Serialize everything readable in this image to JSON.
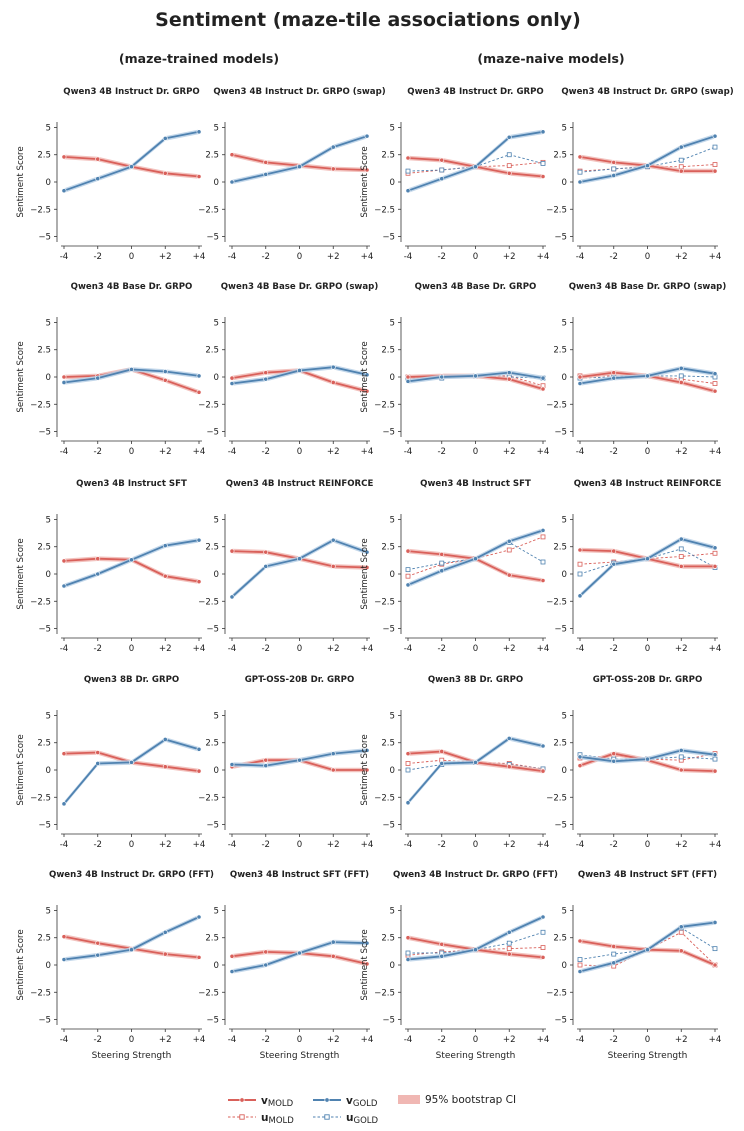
{
  "figure": {
    "title": "Sentiment (maze-tile associations only)",
    "left_header": "(maze-trained models)",
    "right_header": "(maze-naive models)",
    "xlabel": "Steering Strength",
    "ylabel": "Sentiment Score",
    "legend": {
      "v_mold_main": "v",
      "v_mold_sub": "MOLD",
      "u_mold_main": "u",
      "u_mold_sub": "MOLD",
      "v_gold_main": "v",
      "v_gold_sub": "GOLD",
      "u_gold_main": "u",
      "u_gold_sub": "GOLD",
      "ci": "95% bootstrap CI"
    },
    "colors": {
      "mold": "#d9605a",
      "gold": "#4f82b0",
      "ci_mold": "#f0b7b3",
      "ci_gold": "#b8d0e6"
    }
  },
  "chart_data": [
    {
      "type": "line",
      "title": "Qwen3 4B Instruct Dr. GRPO",
      "x": [
        "-4",
        "-2",
        "0",
        "+2",
        "+4"
      ],
      "ylim": [
        -5.5,
        5.5
      ],
      "yticks": [
        "5",
        "2.5",
        "0",
        "−2.5",
        "−5"
      ],
      "xlabel": "",
      "ylabel": "Sentiment Score",
      "series": [
        {
          "name": "v_MOLD",
          "values": [
            2.3,
            2.1,
            1.4,
            0.8,
            0.5
          ]
        },
        {
          "name": "v_GOLD",
          "values": [
            -0.8,
            0.3,
            1.4,
            4.0,
            4.6
          ]
        }
      ]
    },
    {
      "type": "line",
      "title": "Qwen3 4B Instruct Dr. GRPO (swap)",
      "x": [
        "-4",
        "-2",
        "0",
        "+2",
        "+4"
      ],
      "ylim": [
        -5.5,
        5.5
      ],
      "yticks": [
        "5",
        "2.5",
        "0",
        "−2.5",
        "−5"
      ],
      "xlabel": "",
      "ylabel": "",
      "series": [
        {
          "name": "v_MOLD",
          "values": [
            2.5,
            1.8,
            1.5,
            1.2,
            1.1
          ]
        },
        {
          "name": "v_GOLD",
          "values": [
            0.0,
            0.7,
            1.4,
            3.2,
            4.2
          ]
        }
      ]
    },
    {
      "type": "line",
      "title": "Qwen3 4B Instruct Dr. GRPO",
      "x": [
        "-4",
        "-2",
        "0",
        "+2",
        "+4"
      ],
      "ylim": [
        -5.5,
        5.5
      ],
      "yticks": [
        "5",
        "2.5",
        "0",
        "−2.5",
        "−5"
      ],
      "xlabel": "",
      "ylabel": "Sentiment Score",
      "series": [
        {
          "name": "v_MOLD",
          "values": [
            2.2,
            2.0,
            1.4,
            0.8,
            0.5
          ]
        },
        {
          "name": "u_MOLD",
          "values": [
            0.8,
            1.1,
            1.4,
            1.5,
            1.8
          ]
        },
        {
          "name": "v_GOLD",
          "values": [
            -0.8,
            0.3,
            1.4,
            4.1,
            4.6
          ]
        },
        {
          "name": "u_GOLD",
          "values": [
            1.0,
            1.1,
            1.4,
            2.5,
            1.7
          ]
        }
      ]
    },
    {
      "type": "line",
      "title": "Qwen3 4B Instruct Dr. GRPO (swap)",
      "x": [
        "-4",
        "-2",
        "0",
        "+2",
        "+4"
      ],
      "ylim": [
        -5.5,
        5.5
      ],
      "yticks": [
        "5",
        "2.5",
        "0",
        "−2.5",
        "−5"
      ],
      "xlabel": "",
      "ylabel": "",
      "series": [
        {
          "name": "v_MOLD",
          "values": [
            2.3,
            1.8,
            1.5,
            1.0,
            1.0
          ]
        },
        {
          "name": "u_MOLD",
          "values": [
            1.0,
            1.2,
            1.4,
            1.4,
            1.6
          ]
        },
        {
          "name": "v_GOLD",
          "values": [
            0.0,
            0.6,
            1.5,
            3.2,
            4.2
          ]
        },
        {
          "name": "u_GOLD",
          "values": [
            0.9,
            1.2,
            1.4,
            2.0,
            3.2
          ]
        }
      ]
    },
    {
      "type": "line",
      "title": "Qwen3 4B Base Dr. GRPO",
      "x": [
        "-4",
        "-2",
        "0",
        "+2",
        "+4"
      ],
      "ylim": [
        -5.5,
        5.5
      ],
      "yticks": [
        "5",
        "2.5",
        "0",
        "−2.5",
        "−5"
      ],
      "xlabel": "",
      "ylabel": "Sentiment Score",
      "series": [
        {
          "name": "v_MOLD",
          "values": [
            0.0,
            0.1,
            0.7,
            -0.3,
            -1.4
          ]
        },
        {
          "name": "v_GOLD",
          "values": [
            -0.5,
            -0.1,
            0.7,
            0.5,
            0.1
          ]
        }
      ]
    },
    {
      "type": "line",
      "title": "Qwen3 4B Base Dr. GRPO (swap)",
      "x": [
        "-4",
        "-2",
        "0",
        "+2",
        "+4"
      ],
      "ylim": [
        -5.5,
        5.5
      ],
      "yticks": [
        "5",
        "2.5",
        "0",
        "−2.5",
        "−5"
      ],
      "xlabel": "",
      "ylabel": "",
      "series": [
        {
          "name": "v_MOLD",
          "values": [
            -0.1,
            0.4,
            0.6,
            -0.5,
            -1.3
          ]
        },
        {
          "name": "v_GOLD",
          "values": [
            -0.6,
            -0.2,
            0.6,
            0.9,
            0.2
          ]
        }
      ]
    },
    {
      "type": "line",
      "title": "Qwen3 4B Base Dr. GRPO",
      "x": [
        "-4",
        "-2",
        "0",
        "+2",
        "+4"
      ],
      "ylim": [
        -5.5,
        5.5
      ],
      "yticks": [
        "5",
        "2.5",
        "0",
        "−2.5",
        "−5"
      ],
      "xlabel": "",
      "ylabel": "Sentiment Score",
      "series": [
        {
          "name": "v_MOLD",
          "values": [
            0.0,
            0.1,
            0.1,
            -0.2,
            -1.1
          ]
        },
        {
          "name": "u_MOLD",
          "values": [
            0.0,
            0.0,
            0.1,
            0.1,
            -0.8
          ]
        },
        {
          "name": "v_GOLD",
          "values": [
            -0.4,
            0.0,
            0.1,
            0.4,
            -0.1
          ]
        },
        {
          "name": "u_GOLD",
          "values": [
            -0.1,
            -0.1,
            0.1,
            0.0,
            -0.1
          ]
        }
      ]
    },
    {
      "type": "line",
      "title": "Qwen3 4B Base Dr. GRPO (swap)",
      "x": [
        "-4",
        "-2",
        "0",
        "+2",
        "+4"
      ],
      "ylim": [
        -5.5,
        5.5
      ],
      "yticks": [
        "5",
        "2.5",
        "0",
        "−2.5",
        "−5"
      ],
      "xlabel": "",
      "ylabel": "",
      "series": [
        {
          "name": "v_MOLD",
          "values": [
            0.0,
            0.4,
            0.1,
            -0.5,
            -1.3
          ]
        },
        {
          "name": "u_MOLD",
          "values": [
            0.1,
            0.1,
            0.1,
            -0.2,
            -0.6
          ]
        },
        {
          "name": "v_GOLD",
          "values": [
            -0.6,
            -0.1,
            0.1,
            0.8,
            0.3
          ]
        },
        {
          "name": "u_GOLD",
          "values": [
            -0.1,
            0.0,
            0.1,
            0.1,
            0.0
          ]
        }
      ]
    },
    {
      "type": "line",
      "title": "Qwen3 4B Instruct SFT",
      "x": [
        "-4",
        "-2",
        "0",
        "+2",
        "+4"
      ],
      "ylim": [
        -5.5,
        5.5
      ],
      "yticks": [
        "5",
        "2.5",
        "0",
        "−2.5",
        "−5"
      ],
      "xlabel": "",
      "ylabel": "Sentiment Score",
      "series": [
        {
          "name": "v_MOLD",
          "values": [
            1.2,
            1.4,
            1.3,
            -0.2,
            -0.7
          ]
        },
        {
          "name": "v_GOLD",
          "values": [
            -1.1,
            0.0,
            1.3,
            2.6,
            3.1
          ]
        }
      ]
    },
    {
      "type": "line",
      "title": "Qwen3 4B Instruct REINFORCE",
      "x": [
        "-4",
        "-2",
        "0",
        "+2",
        "+4"
      ],
      "ylim": [
        -5.5,
        5.5
      ],
      "yticks": [
        "5",
        "2.5",
        "0",
        "−2.5",
        "−5"
      ],
      "xlabel": "",
      "ylabel": "",
      "series": [
        {
          "name": "v_MOLD",
          "values": [
            2.1,
            2.0,
            1.4,
            0.7,
            0.6
          ]
        },
        {
          "name": "v_GOLD",
          "values": [
            -2.1,
            0.7,
            1.4,
            3.1,
            2.0
          ]
        }
      ]
    },
    {
      "type": "line",
      "title": "Qwen3 4B Instruct SFT",
      "x": [
        "-4",
        "-2",
        "0",
        "+2",
        "+4"
      ],
      "ylim": [
        -5.5,
        5.5
      ],
      "yticks": [
        "5",
        "2.5",
        "0",
        "−2.5",
        "−5"
      ],
      "xlabel": "",
      "ylabel": "Sentiment Score",
      "series": [
        {
          "name": "v_MOLD",
          "values": [
            2.1,
            1.8,
            1.4,
            -0.1,
            -0.6
          ]
        },
        {
          "name": "u_MOLD",
          "values": [
            -0.2,
            0.9,
            1.4,
            2.2,
            3.4
          ]
        },
        {
          "name": "v_GOLD",
          "values": [
            -1.0,
            0.3,
            1.4,
            3.0,
            4.0
          ]
        },
        {
          "name": "u_GOLD",
          "values": [
            0.4,
            1.0,
            1.4,
            2.9,
            1.1
          ]
        }
      ]
    },
    {
      "type": "line",
      "title": "Qwen3 4B Instruct REINFORCE",
      "x": [
        "-4",
        "-2",
        "0",
        "+2",
        "+4"
      ],
      "ylim": [
        -5.5,
        5.5
      ],
      "yticks": [
        "5",
        "2.5",
        "0",
        "−2.5",
        "−5"
      ],
      "xlabel": "",
      "ylabel": "",
      "series": [
        {
          "name": "v_MOLD",
          "values": [
            2.2,
            2.1,
            1.4,
            0.7,
            0.7
          ]
        },
        {
          "name": "u_MOLD",
          "values": [
            0.9,
            1.1,
            1.4,
            1.6,
            1.9
          ]
        },
        {
          "name": "v_GOLD",
          "values": [
            -2.0,
            0.9,
            1.4,
            3.2,
            2.4
          ]
        },
        {
          "name": "u_GOLD",
          "values": [
            0.0,
            1.0,
            1.4,
            2.3,
            0.6
          ]
        }
      ]
    },
    {
      "type": "line",
      "title": "Qwen3 8B Dr. GRPO",
      "x": [
        "-4",
        "-2",
        "0",
        "+2",
        "+4"
      ],
      "ylim": [
        -5.5,
        5.5
      ],
      "yticks": [
        "5",
        "2.5",
        "0",
        "−2.5",
        "−5"
      ],
      "xlabel": "",
      "ylabel": "Sentiment Score",
      "series": [
        {
          "name": "v_MOLD",
          "values": [
            1.5,
            1.6,
            0.7,
            0.3,
            -0.1
          ]
        },
        {
          "name": "v_GOLD",
          "values": [
            -3.1,
            0.6,
            0.7,
            2.8,
            1.9
          ]
        }
      ]
    },
    {
      "type": "line",
      "title": "GPT-OSS-20B Dr. GRPO",
      "x": [
        "-4",
        "-2",
        "0",
        "+2",
        "+4"
      ],
      "ylim": [
        -5.5,
        5.5
      ],
      "yticks": [
        "5",
        "2.5",
        "0",
        "−2.5",
        "−5"
      ],
      "xlabel": "",
      "ylabel": "",
      "series": [
        {
          "name": "v_MOLD",
          "values": [
            0.3,
            0.9,
            0.9,
            0.0,
            0.0
          ]
        },
        {
          "name": "v_GOLD",
          "values": [
            0.5,
            0.4,
            0.9,
            1.5,
            1.8
          ]
        }
      ]
    },
    {
      "type": "line",
      "title": "Qwen3 8B Dr. GRPO",
      "x": [
        "-4",
        "-2",
        "0",
        "+2",
        "+4"
      ],
      "ylim": [
        -5.5,
        5.5
      ],
      "yticks": [
        "5",
        "2.5",
        "0",
        "−2.5",
        "−5"
      ],
      "xlabel": "",
      "ylabel": "Sentiment Score",
      "series": [
        {
          "name": "v_MOLD",
          "values": [
            1.5,
            1.7,
            0.7,
            0.3,
            -0.1
          ]
        },
        {
          "name": "u_MOLD",
          "values": [
            0.6,
            0.9,
            0.7,
            0.6,
            0.1
          ]
        },
        {
          "name": "v_GOLD",
          "values": [
            -3.0,
            0.6,
            0.7,
            2.9,
            2.2
          ]
        },
        {
          "name": "u_GOLD",
          "values": [
            0.0,
            0.5,
            0.7,
            0.5,
            0.1
          ]
        }
      ]
    },
    {
      "type": "line",
      "title": "GPT-OSS-20B Dr. GRPO",
      "x": [
        "-4",
        "-2",
        "0",
        "+2",
        "+4"
      ],
      "ylim": [
        -5.5,
        5.5
      ],
      "yticks": [
        "5",
        "2.5",
        "0",
        "−2.5",
        "−5"
      ],
      "xlabel": "",
      "ylabel": "",
      "series": [
        {
          "name": "v_MOLD",
          "values": [
            0.4,
            1.5,
            0.9,
            0.0,
            -0.1
          ]
        },
        {
          "name": "u_MOLD",
          "values": [
            1.1,
            1.3,
            1.0,
            0.9,
            1.5
          ]
        },
        {
          "name": "v_GOLD",
          "values": [
            1.2,
            0.8,
            1.0,
            1.8,
            1.4
          ]
        },
        {
          "name": "u_GOLD",
          "values": [
            1.4,
            1.0,
            1.0,
            1.2,
            1.0
          ]
        }
      ]
    },
    {
      "type": "line",
      "title": "Qwen3 4B Instruct Dr. GRPO (FFT)",
      "x": [
        "-4",
        "-2",
        "0",
        "+2",
        "+4"
      ],
      "ylim": [
        -5.5,
        5.5
      ],
      "yticks": [
        "5",
        "2.5",
        "0",
        "−2.5",
        "−5"
      ],
      "xlabel": "Steering Strength",
      "ylabel": "Sentiment Score",
      "series": [
        {
          "name": "v_MOLD",
          "values": [
            2.6,
            2.0,
            1.5,
            1.0,
            0.7
          ]
        },
        {
          "name": "v_GOLD",
          "values": [
            0.5,
            0.9,
            1.4,
            3.0,
            4.4
          ]
        }
      ]
    },
    {
      "type": "line",
      "title": "Qwen3 4B Instruct SFT (FFT)",
      "x": [
        "-4",
        "-2",
        "0",
        "+2",
        "+4"
      ],
      "ylim": [
        -5.5,
        5.5
      ],
      "yticks": [
        "5",
        "2.5",
        "0",
        "−2.5",
        "−5"
      ],
      "xlabel": "Steering Strength",
      "ylabel": "",
      "series": [
        {
          "name": "v_MOLD",
          "values": [
            0.8,
            1.2,
            1.1,
            0.8,
            0.1
          ]
        },
        {
          "name": "v_GOLD",
          "values": [
            -0.6,
            0.0,
            1.1,
            2.1,
            2.0
          ]
        }
      ]
    },
    {
      "type": "line",
      "title": "Qwen3 4B Instruct Dr. GRPO (FFT)",
      "x": [
        "-4",
        "-2",
        "0",
        "+2",
        "+4"
      ],
      "ylim": [
        -5.5,
        5.5
      ],
      "yticks": [
        "5",
        "2.5",
        "0",
        "−2.5",
        "−5"
      ],
      "xlabel": "Steering Strength",
      "ylabel": "Sentiment Score",
      "series": [
        {
          "name": "v_MOLD",
          "values": [
            2.5,
            1.9,
            1.4,
            1.0,
            0.7
          ]
        },
        {
          "name": "u_MOLD",
          "values": [
            0.9,
            1.2,
            1.4,
            1.5,
            1.6
          ]
        },
        {
          "name": "v_GOLD",
          "values": [
            0.5,
            0.8,
            1.4,
            3.0,
            4.4
          ]
        },
        {
          "name": "u_GOLD",
          "values": [
            1.1,
            1.1,
            1.4,
            2.0,
            3.0
          ]
        }
      ]
    },
    {
      "type": "line",
      "title": "Qwen3 4B Instruct SFT (FFT)",
      "x": [
        "-4",
        "-2",
        "0",
        "+2",
        "+4"
      ],
      "ylim": [
        -5.5,
        5.5
      ],
      "yticks": [
        "5",
        "2.5",
        "0",
        "−2.5",
        "−5"
      ],
      "xlabel": "Steering Strength",
      "ylabel": "",
      "series": [
        {
          "name": "v_MOLD",
          "values": [
            2.2,
            1.7,
            1.4,
            1.3,
            0.0
          ]
        },
        {
          "name": "u_MOLD",
          "values": [
            0.0,
            -0.1,
            1.4,
            3.0,
            0.0
          ]
        },
        {
          "name": "v_GOLD",
          "values": [
            -0.6,
            0.2,
            1.4,
            3.5,
            3.9
          ]
        },
        {
          "name": "u_GOLD",
          "values": [
            0.5,
            1.0,
            1.4,
            3.4,
            1.5
          ]
        }
      ]
    }
  ]
}
